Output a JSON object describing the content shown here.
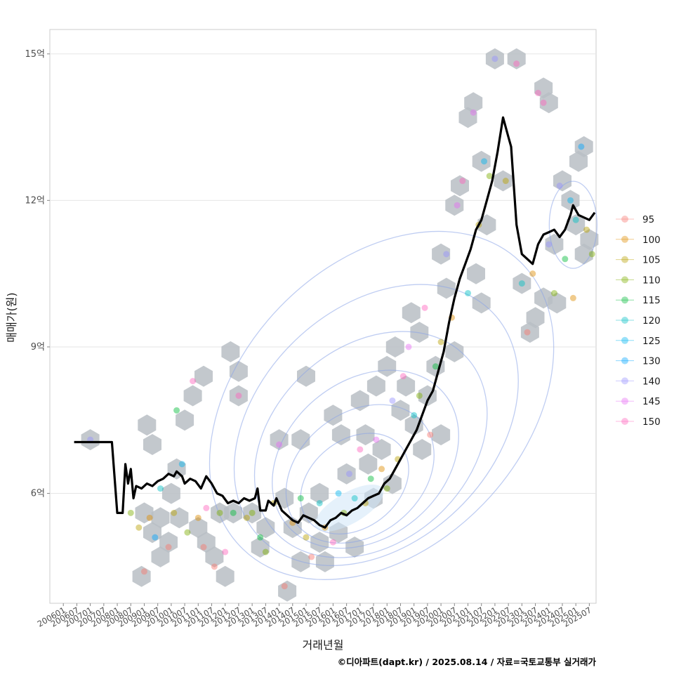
{
  "chart_data": {
    "type": "line",
    "xlabel": "거래년월",
    "ylabel": "매매가(원)",
    "caption": "©디아파트(dapt.kr) / 2025.08.14 / 자료=국토교통부 실거래가",
    "x_ticks": [
      "200601",
      "200607",
      "200701",
      "200707",
      "200801",
      "200807",
      "200901",
      "200907",
      "201001",
      "201007",
      "201101",
      "201107",
      "201201",
      "201207",
      "201301",
      "201307",
      "201401",
      "201407",
      "201501",
      "201507",
      "201601",
      "201607",
      "201701",
      "201707",
      "201801",
      "201807",
      "201901",
      "201907",
      "202001",
      "202007",
      "202101",
      "202107",
      "202201",
      "202207",
      "202301",
      "202307",
      "202401",
      "202407",
      "202501",
      "202507"
    ],
    "y_ticks": [
      {
        "value": 6,
        "label": "6억"
      },
      {
        "value": 9,
        "label": "9억"
      },
      {
        "value": 12,
        "label": "12억"
      },
      {
        "value": 15,
        "label": "15억"
      }
    ],
    "xlim_months": [
      2005.5,
      2025.75
    ],
    "ylim": [
      3.75,
      15.5
    ],
    "grid": "horizontal",
    "legend_position": "right",
    "legend": [
      {
        "label": "95",
        "color": "#F8766D"
      },
      {
        "label": "100",
        "color": "#DE8C00"
      },
      {
        "label": "105",
        "color": "#B79F00"
      },
      {
        "label": "110",
        "color": "#7CAE00"
      },
      {
        "label": "115",
        "color": "#00BA38"
      },
      {
        "label": "120",
        "color": "#00BFC4"
      },
      {
        "label": "125",
        "color": "#00B4F0"
      },
      {
        "label": "130",
        "color": "#00A5FF"
      },
      {
        "label": "140",
        "color": "#9590FF"
      },
      {
        "label": "145",
        "color": "#E76BF3"
      },
      {
        "label": "150",
        "color": "#FF62BC"
      }
    ],
    "series": [
      {
        "label": "trend",
        "color": "#000000",
        "points": [
          [
            2006.4,
            7.05
          ],
          [
            2006.6,
            7.05
          ],
          [
            2007.0,
            7.05
          ],
          [
            2007.5,
            7.05
          ],
          [
            2007.8,
            7.05
          ],
          [
            2008.0,
            5.6
          ],
          [
            2008.2,
            5.6
          ],
          [
            2008.3,
            6.6
          ],
          [
            2008.4,
            6.2
          ],
          [
            2008.5,
            6.5
          ],
          [
            2008.6,
            5.9
          ],
          [
            2008.7,
            6.15
          ],
          [
            2008.9,
            6.1
          ],
          [
            2009.1,
            6.2
          ],
          [
            2009.3,
            6.15
          ],
          [
            2009.5,
            6.25
          ],
          [
            2009.7,
            6.3
          ],
          [
            2009.9,
            6.4
          ],
          [
            2010.1,
            6.35
          ],
          [
            2010.2,
            6.45
          ],
          [
            2010.4,
            6.35
          ],
          [
            2010.5,
            6.2
          ],
          [
            2010.7,
            6.3
          ],
          [
            2010.9,
            6.25
          ],
          [
            2011.1,
            6.1
          ],
          [
            2011.3,
            6.35
          ],
          [
            2011.5,
            6.2
          ],
          [
            2011.7,
            6.0
          ],
          [
            2011.9,
            5.95
          ],
          [
            2012.1,
            5.8
          ],
          [
            2012.3,
            5.85
          ],
          [
            2012.5,
            5.8
          ],
          [
            2012.7,
            5.9
          ],
          [
            2012.9,
            5.85
          ],
          [
            2013.1,
            5.9
          ],
          [
            2013.2,
            6.1
          ],
          [
            2013.3,
            5.65
          ],
          [
            2013.5,
            5.65
          ],
          [
            2013.6,
            5.85
          ],
          [
            2013.8,
            5.75
          ],
          [
            2013.9,
            5.9
          ],
          [
            2014.1,
            5.65
          ],
          [
            2014.3,
            5.55
          ],
          [
            2014.5,
            5.45
          ],
          [
            2014.7,
            5.4
          ],
          [
            2014.9,
            5.55
          ],
          [
            2015.1,
            5.5
          ],
          [
            2015.3,
            5.45
          ],
          [
            2015.5,
            5.35
          ],
          [
            2015.7,
            5.3
          ],
          [
            2015.9,
            5.45
          ],
          [
            2016.1,
            5.5
          ],
          [
            2016.3,
            5.6
          ],
          [
            2016.5,
            5.55
          ],
          [
            2016.7,
            5.65
          ],
          [
            2016.9,
            5.7
          ],
          [
            2017.1,
            5.8
          ],
          [
            2017.3,
            5.9
          ],
          [
            2017.5,
            5.95
          ],
          [
            2017.7,
            6.0
          ],
          [
            2017.9,
            6.2
          ],
          [
            2018.1,
            6.3
          ],
          [
            2018.3,
            6.5
          ],
          [
            2018.5,
            6.7
          ],
          [
            2018.7,
            6.9
          ],
          [
            2018.9,
            7.1
          ],
          [
            2019.1,
            7.3
          ],
          [
            2019.3,
            7.6
          ],
          [
            2019.5,
            7.9
          ],
          [
            2019.7,
            8.1
          ],
          [
            2019.9,
            8.5
          ],
          [
            2020.1,
            8.9
          ],
          [
            2020.3,
            9.5
          ],
          [
            2020.5,
            10.0
          ],
          [
            2020.7,
            10.4
          ],
          [
            2020.9,
            10.7
          ],
          [
            2021.1,
            11.0
          ],
          [
            2021.3,
            11.4
          ],
          [
            2021.5,
            11.6
          ],
          [
            2021.7,
            12.0
          ],
          [
            2021.9,
            12.4
          ],
          [
            2022.1,
            13.0
          ],
          [
            2022.3,
            13.7
          ],
          [
            2022.5,
            13.3
          ],
          [
            2022.6,
            13.1
          ],
          [
            2022.8,
            11.5
          ],
          [
            2023.0,
            10.9
          ],
          [
            2023.2,
            10.8
          ],
          [
            2023.4,
            10.7
          ],
          [
            2023.6,
            11.1
          ],
          [
            2023.8,
            11.3
          ],
          [
            2024.0,
            11.35
          ],
          [
            2024.2,
            11.4
          ],
          [
            2024.4,
            11.25
          ],
          [
            2024.6,
            11.4
          ],
          [
            2024.8,
            11.7
          ],
          [
            2024.9,
            11.9
          ],
          [
            2025.1,
            11.7
          ],
          [
            2025.3,
            11.65
          ],
          [
            2025.5,
            11.6
          ],
          [
            2025.7,
            11.75
          ]
        ]
      }
    ],
    "scatter_points": [
      [
        2007.0,
        7.1,
        "#9590FF"
      ],
      [
        2008.5,
        5.6,
        "#7CAE00"
      ],
      [
        2008.8,
        5.3,
        "#B79F00"
      ],
      [
        2009.0,
        4.4,
        "#F8766D"
      ],
      [
        2009.2,
        5.5,
        "#DE8C00"
      ],
      [
        2009.4,
        5.1,
        "#00A5FF"
      ],
      [
        2009.6,
        6.1,
        "#00BFC4"
      ],
      [
        2009.9,
        4.9,
        "#F8766D"
      ],
      [
        2010.1,
        5.6,
        "#B79F00"
      ],
      [
        2010.2,
        7.7,
        "#00BA38"
      ],
      [
        2010.4,
        6.6,
        "#00B4F0"
      ],
      [
        2010.6,
        5.2,
        "#7CAE00"
      ],
      [
        2010.8,
        8.3,
        "#FF62BC"
      ],
      [
        2011.0,
        5.5,
        "#DE8C00"
      ],
      [
        2011.2,
        4.9,
        "#F8766D"
      ],
      [
        2011.3,
        5.7,
        "#FF62BC"
      ],
      [
        2011.6,
        4.5,
        "#F8766D"
      ],
      [
        2011.8,
        5.6,
        "#7CAE00"
      ],
      [
        2012.0,
        4.8,
        "#FF62BC"
      ],
      [
        2012.3,
        5.6,
        "#00BA38"
      ],
      [
        2012.5,
        8.0,
        "#FF62BC"
      ],
      [
        2012.8,
        5.5,
        "#B79F00"
      ],
      [
        2013.0,
        5.6,
        "#7CAE00"
      ],
      [
        2013.3,
        5.1,
        "#00BA38"
      ],
      [
        2013.5,
        4.8,
        "#7CAE00"
      ],
      [
        2013.8,
        5.8,
        "#B79F00"
      ],
      [
        2014.0,
        7.0,
        "#E76BF3"
      ],
      [
        2014.2,
        4.1,
        "#F8766D"
      ],
      [
        2014.5,
        5.4,
        "#DE8C00"
      ],
      [
        2014.8,
        5.9,
        "#00BA38"
      ],
      [
        2015.0,
        5.1,
        "#B79F00"
      ],
      [
        2015.2,
        4.7,
        "#F8766D"
      ],
      [
        2015.5,
        5.8,
        "#00BFC4"
      ],
      [
        2015.7,
        5.3,
        "#DE8C00"
      ],
      [
        2016.0,
        5.0,
        "#FF62BC"
      ],
      [
        2016.2,
        6.0,
        "#00B4F0"
      ],
      [
        2016.4,
        5.6,
        "#7CAE00"
      ],
      [
        2016.6,
        6.4,
        "#9590FF"
      ],
      [
        2016.8,
        5.9,
        "#00BFC4"
      ],
      [
        2017.0,
        6.9,
        "#FF62BC"
      ],
      [
        2017.2,
        5.8,
        "#B79F00"
      ],
      [
        2017.4,
        6.3,
        "#00BA38"
      ],
      [
        2017.6,
        7.1,
        "#E76BF3"
      ],
      [
        2017.8,
        6.5,
        "#DE8C00"
      ],
      [
        2018.0,
        6.1,
        "#7CAE00"
      ],
      [
        2018.2,
        7.9,
        "#9590FF"
      ],
      [
        2018.4,
        6.7,
        "#B79F00"
      ],
      [
        2018.6,
        8.4,
        "#FF62BC"
      ],
      [
        2018.8,
        9.0,
        "#E76BF3"
      ],
      [
        2019.0,
        7.6,
        "#00BFC4"
      ],
      [
        2019.2,
        8.0,
        "#7CAE00"
      ],
      [
        2019.4,
        9.8,
        "#FF62BC"
      ],
      [
        2019.6,
        7.2,
        "#F8766D"
      ],
      [
        2019.8,
        8.6,
        "#00BA38"
      ],
      [
        2020.0,
        9.1,
        "#B79F00"
      ],
      [
        2020.2,
        10.9,
        "#9590FF"
      ],
      [
        2020.4,
        9.6,
        "#DE8C00"
      ],
      [
        2020.6,
        11.9,
        "#E76BF3"
      ],
      [
        2020.8,
        12.4,
        "#FF62BC"
      ],
      [
        2021.0,
        10.1,
        "#00BFC4"
      ],
      [
        2021.2,
        13.8,
        "#E76BF3"
      ],
      [
        2021.4,
        11.5,
        "#B79F00"
      ],
      [
        2021.6,
        12.8,
        "#00B4F0"
      ],
      [
        2021.8,
        12.5,
        "#7CAE00"
      ],
      [
        2022.0,
        14.9,
        "#9590FF"
      ],
      [
        2022.4,
        12.4,
        "#B79F00"
      ],
      [
        2022.8,
        14.8,
        "#FF62BC"
      ],
      [
        2023.0,
        10.3,
        "#00BFC4"
      ],
      [
        2023.2,
        9.3,
        "#F8766D"
      ],
      [
        2023.4,
        10.5,
        "#DE8C00"
      ],
      [
        2023.6,
        14.2,
        "#FF62BC"
      ],
      [
        2023.8,
        14.0,
        "#FF62BC"
      ],
      [
        2024.0,
        11.1,
        "#9590FF"
      ],
      [
        2024.2,
        10.1,
        "#7CAE00"
      ],
      [
        2024.4,
        12.3,
        "#9590FF"
      ],
      [
        2024.6,
        10.8,
        "#00BA38"
      ],
      [
        2024.8,
        12.0,
        "#00B4F0"
      ],
      [
        2025.0,
        11.6,
        "#00BFC4"
      ],
      [
        2025.2,
        13.1,
        "#00A5FF"
      ],
      [
        2025.4,
        11.4,
        "#B79F00"
      ],
      [
        2025.6,
        10.9,
        "#7CAE00"
      ],
      [
        2024.9,
        10.0,
        "#DE8C00"
      ]
    ],
    "hexbin_cells": [
      [
        2007.0,
        7.1
      ],
      [
        2009.1,
        7.4
      ],
      [
        2009.3,
        7.0
      ],
      [
        2009.0,
        5.6
      ],
      [
        2009.3,
        5.2
      ],
      [
        2009.6,
        5.5
      ],
      [
        2008.9,
        4.3
      ],
      [
        2009.6,
        4.7
      ],
      [
        2009.9,
        5.0
      ],
      [
        2010.3,
        5.5
      ],
      [
        2010.0,
        6.0
      ],
      [
        2010.2,
        6.5
      ],
      [
        2010.5,
        7.5
      ],
      [
        2010.8,
        8.0
      ],
      [
        2011.2,
        8.4
      ],
      [
        2011.0,
        5.3
      ],
      [
        2011.3,
        5.0
      ],
      [
        2011.6,
        4.7
      ],
      [
        2012.0,
        4.3
      ],
      [
        2011.8,
        5.6
      ],
      [
        2012.3,
        5.6
      ],
      [
        2012.2,
        8.9
      ],
      [
        2012.5,
        8.5
      ],
      [
        2012.5,
        8.0
      ],
      [
        2013.0,
        5.6
      ],
      [
        2013.5,
        5.3
      ],
      [
        2013.3,
        4.9
      ],
      [
        2014.0,
        7.1
      ],
      [
        2014.2,
        5.9
      ],
      [
        2014.5,
        5.3
      ],
      [
        2014.3,
        4.0
      ],
      [
        2014.8,
        4.6
      ],
      [
        2014.8,
        7.1
      ],
      [
        2015.1,
        5.6
      ],
      [
        2015.0,
        8.4
      ],
      [
        2015.5,
        6.0
      ],
      [
        2015.5,
        5.0
      ],
      [
        2015.7,
        4.6
      ],
      [
        2016.0,
        7.6
      ],
      [
        2016.3,
        7.2
      ],
      [
        2016.5,
        6.4
      ],
      [
        2016.2,
        5.2
      ],
      [
        2016.8,
        4.9
      ],
      [
        2017.0,
        7.9
      ],
      [
        2017.2,
        7.2
      ],
      [
        2017.3,
        6.6
      ],
      [
        2017.5,
        5.9
      ],
      [
        2017.8,
        6.9
      ],
      [
        2017.6,
        8.2
      ],
      [
        2018.0,
        8.6
      ],
      [
        2018.3,
        9.0
      ],
      [
        2018.2,
        6.2
      ],
      [
        2018.5,
        7.7
      ],
      [
        2018.7,
        8.2
      ],
      [
        2018.9,
        9.7
      ],
      [
        2019.2,
        9.3
      ],
      [
        2019.0,
        7.4
      ],
      [
        2019.3,
        6.9
      ],
      [
        2019.5,
        8.0
      ],
      [
        2019.8,
        8.6
      ],
      [
        2020.0,
        10.9
      ],
      [
        2020.2,
        10.2
      ],
      [
        2020.0,
        7.2
      ],
      [
        2020.5,
        8.9
      ],
      [
        2020.5,
        11.9
      ],
      [
        2020.7,
        12.3
      ],
      [
        2021.0,
        13.7
      ],
      [
        2021.2,
        14.0
      ],
      [
        2021.5,
        12.8
      ],
      [
        2021.7,
        11.5
      ],
      [
        2021.3,
        10.5
      ],
      [
        2021.5,
        9.9
      ],
      [
        2022.0,
        14.9
      ],
      [
        2022.3,
        12.4
      ],
      [
        2022.8,
        14.9
      ],
      [
        2023.0,
        10.3
      ],
      [
        2023.3,
        9.3
      ],
      [
        2023.5,
        9.6
      ],
      [
        2023.8,
        10.0
      ],
      [
        2023.8,
        14.3
      ],
      [
        2024.0,
        14.0
      ],
      [
        2024.5,
        12.4
      ],
      [
        2024.2,
        11.1
      ],
      [
        2024.3,
        9.9
      ],
      [
        2024.8,
        12.0
      ],
      [
        2025.0,
        11.5
      ],
      [
        2025.3,
        13.1
      ],
      [
        2025.1,
        12.8
      ],
      [
        2025.5,
        11.2
      ],
      [
        2025.3,
        10.9
      ]
    ]
  }
}
